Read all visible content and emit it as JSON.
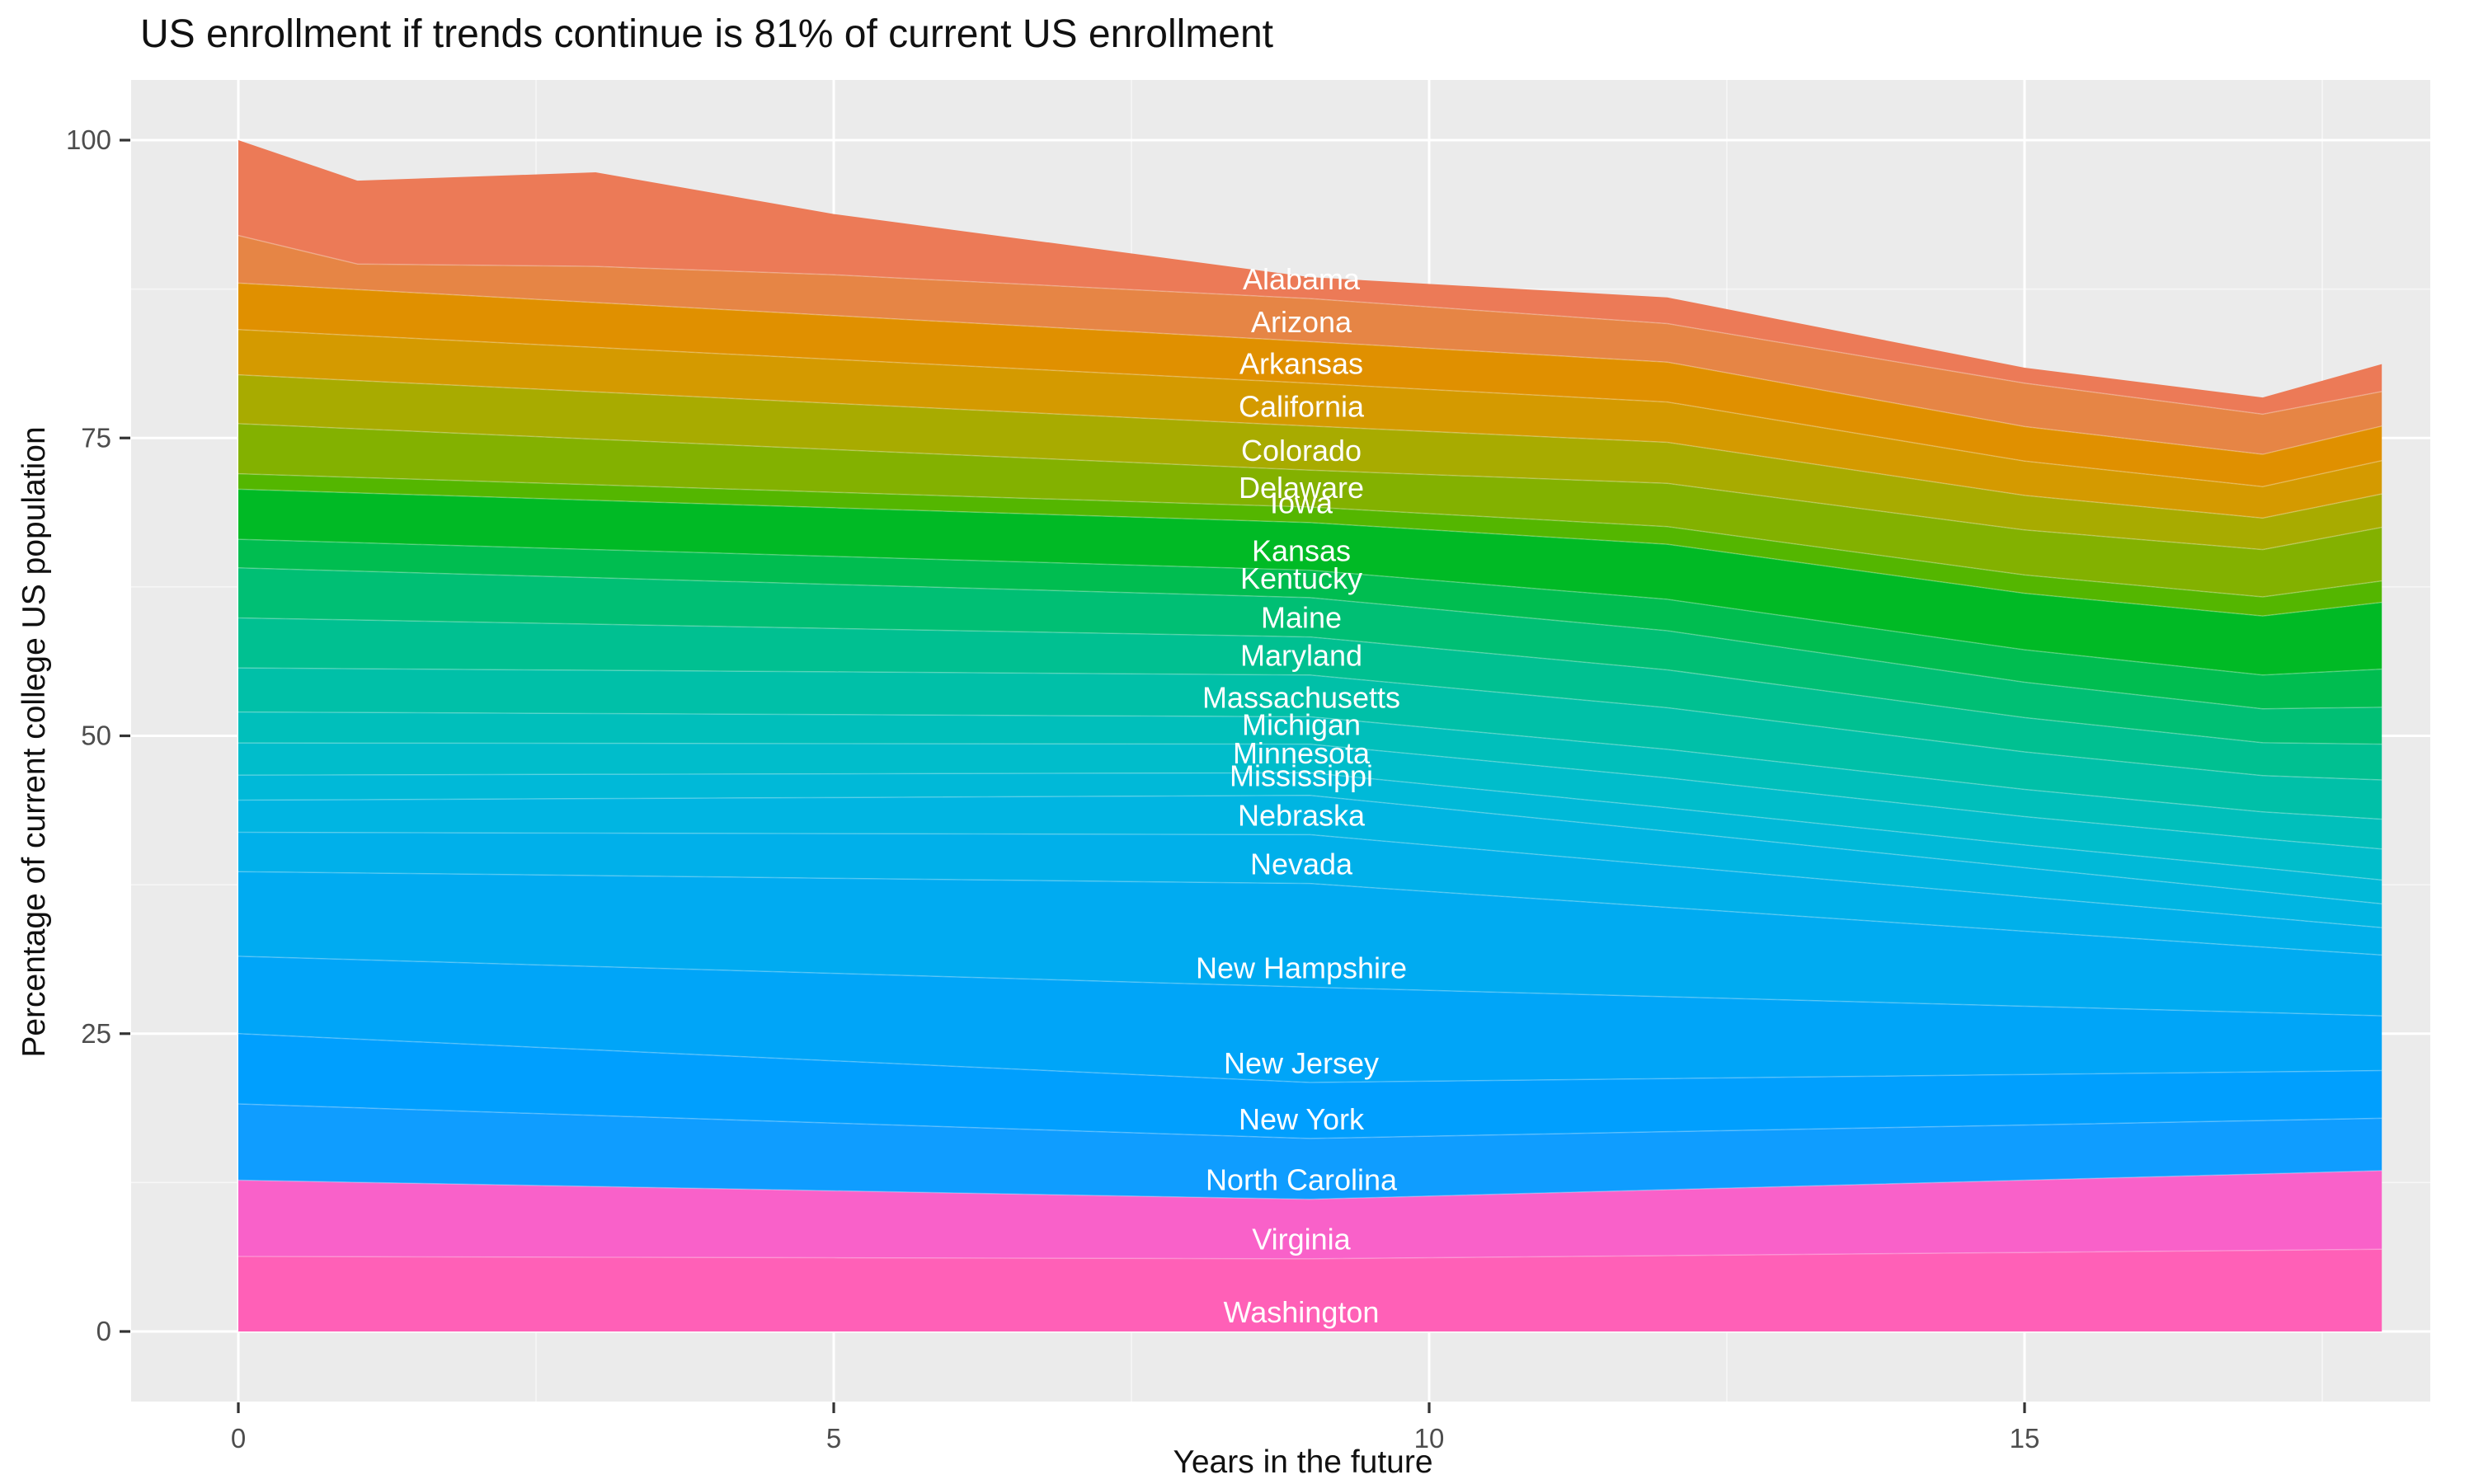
{
  "title": "US enrollment if trends continue is 81% of current US enrollment",
  "x_axis": {
    "title": "Years in the future",
    "tick_labels": [
      "0",
      "5",
      "10",
      "15"
    ],
    "tick_values": [
      0,
      5,
      10,
      15
    ]
  },
  "y_axis": {
    "title": "Percentage of current college US population",
    "tick_labels": [
      "0",
      "25",
      "50",
      "75",
      "100"
    ],
    "tick_values": [
      0,
      25,
      50,
      75,
      100
    ]
  },
  "colors": {
    "panel_background": "#EBEBEB",
    "grid_major": "#FFFFFF",
    "grid_minor": "#F5F5F5",
    "tick_mark": "#333333",
    "tick_label": "#4D4D4D",
    "title_text": "#111111",
    "state_label_text": "#FFFFFF"
  },
  "chart_data": {
    "type": "area",
    "stacked": true,
    "title": "US enrollment if trends continue is 81% of current US enrollment",
    "xlabel": "Years in the future",
    "ylabel": "Percentage of current college US population",
    "xlim": [
      0,
      18
    ],
    "ylim": [
      0,
      100
    ],
    "grid": "on",
    "legend": "none",
    "x": [
      0,
      1,
      3,
      5,
      9,
      12,
      15,
      17,
      18
    ],
    "x_minor_gridlines": [
      2.5,
      7.5,
      12.5,
      17.5
    ],
    "y_minor_gridlines": [
      12.5,
      37.5,
      62.5,
      87.5
    ],
    "total_start_pct": 100,
    "total_end_pct": 81,
    "series": [
      {
        "name": "Washington",
        "color": "#FF60B7",
        "values": [
          6.3,
          6.28,
          6.23,
          6.19,
          6.1,
          6.37,
          6.63,
          6.81,
          6.9
        ]
      },
      {
        "name": "Virginia",
        "color": "#F961C9",
        "values": [
          6.4,
          6.24,
          5.94,
          5.62,
          5.0,
          5.53,
          6.07,
          6.42,
          6.6
        ]
      },
      {
        "name": "North Carolina",
        "color": "#0F9DFF",
        "values": [
          6.4,
          6.26,
          5.96,
          5.68,
          5.1,
          4.87,
          4.63,
          4.48,
          4.4
        ]
      },
      {
        "name": "New York",
        "color": "#009FFE",
        "values": [
          5.9,
          5.76,
          5.5,
          5.23,
          4.7,
          4.46,
          4.24,
          4.08,
          4.0
        ]
      },
      {
        "name": "New Jersey",
        "color": "#00A5F8",
        "values": [
          6.5,
          6.67,
          7.0,
          7.34,
          8.0,
          6.87,
          5.73,
          4.98,
          4.6
        ]
      },
      {
        "name": "New Hampshire",
        "color": "#00ABF1",
        "values": [
          7.1,
          7.28,
          7.64,
          7.98,
          8.7,
          7.5,
          6.3,
          5.5,
          5.1
        ]
      },
      {
        "name": "Nevada",
        "color": "#00B0EA",
        "values": [
          3.3,
          3.39,
          3.56,
          3.75,
          4.1,
          3.5,
          2.9,
          2.5,
          2.3
        ]
      },
      {
        "name": "Nebraska",
        "color": "#00B5E2",
        "values": [
          2.7,
          2.76,
          2.9,
          3.03,
          3.3,
          2.9,
          2.43,
          2.14,
          2.0
        ]
      },
      {
        "name": "Mississippi",
        "color": "#00B9D8",
        "values": [
          2.1,
          2.08,
          2.04,
          1.99,
          1.9,
          1.96,
          1.91,
          1.99,
          2.0
        ]
      },
      {
        "name": "Minnesota",
        "color": "#00BDCB",
        "values": [
          2.7,
          2.67,
          2.6,
          2.53,
          2.4,
          2.51,
          2.38,
          2.45,
          2.6
        ]
      },
      {
        "name": "Michigan",
        "color": "#00BFBB",
        "values": [
          2.6,
          2.57,
          2.5,
          2.44,
          2.3,
          2.4,
          2.28,
          2.27,
          2.5
        ]
      },
      {
        "name": "Massachusetts",
        "color": "#00C0A8",
        "values": [
          3.7,
          3.67,
          3.63,
          3.59,
          3.5,
          3.49,
          3.15,
          3.04,
          3.3
        ]
      },
      {
        "name": "Maryland",
        "color": "#00C091",
        "values": [
          4.2,
          4.09,
          3.87,
          3.64,
          3.2,
          3.18,
          2.88,
          2.76,
          3.0
        ]
      },
      {
        "name": "Maine",
        "color": "#00BF74",
        "values": [
          4.2,
          4.1,
          3.9,
          3.7,
          3.3,
          3.28,
          2.97,
          2.85,
          3.1
        ]
      },
      {
        "name": "Kentucky",
        "color": "#00BD50",
        "values": [
          2.4,
          2.39,
          2.36,
          2.35,
          2.3,
          2.64,
          2.72,
          2.83,
          3.2
        ]
      },
      {
        "name": "Kansas",
        "color": "#00BA25",
        "values": [
          4.2,
          4.18,
          4.14,
          4.08,
          4.0,
          4.62,
          4.74,
          4.96,
          5.6
        ]
      },
      {
        "name": "Iowa",
        "color": "#54B600",
        "values": [
          1.3,
          1.3,
          1.3,
          1.3,
          1.3,
          1.48,
          1.54,
          1.6,
          1.8
        ]
      },
      {
        "name": "Delaware",
        "color": "#83B100",
        "values": [
          4.2,
          4.08,
          3.83,
          3.59,
          3.1,
          3.63,
          3.78,
          3.97,
          4.5
        ]
      },
      {
        "name": "Colorado",
        "color": "#A8AB00",
        "values": [
          4.1,
          4.05,
          3.97,
          3.88,
          3.7,
          3.45,
          2.9,
          2.65,
          2.8
        ]
      },
      {
        "name": "California",
        "color": "#D49A00",
        "values": [
          3.8,
          3.78,
          3.73,
          3.69,
          3.6,
          3.38,
          2.88,
          2.64,
          2.8
        ]
      },
      {
        "name": "Arkansas",
        "color": "#E09000",
        "values": [
          3.9,
          3.86,
          3.77,
          3.68,
          3.5,
          3.35,
          2.9,
          2.71,
          2.9
        ]
      },
      {
        "name": "Arizona",
        "color": "#E68545",
        "values": [
          4.0,
          2.14,
          3.03,
          3.42,
          3.6,
          3.23,
          3.64,
          3.37,
          2.9
        ]
      },
      {
        "name": "Alabama",
        "color": "#EC7A57",
        "values": [
          8.0,
          7.0,
          7.9,
          5.1,
          1.8,
          2.2,
          1.3,
          1.4,
          2.3
        ]
      }
    ],
    "state_labels": [
      {
        "text": "Alabama",
        "at_value": 88.3
      },
      {
        "text": "Arizona",
        "at_value": 84.7
      },
      {
        "text": "Arkansas",
        "at_value": 81.2
      },
      {
        "text": "California",
        "at_value": 77.6
      },
      {
        "text": "Colorado",
        "at_value": 73.9
      },
      {
        "text": "Delaware",
        "at_value": 70.8
      },
      {
        "text": "Iowa",
        "at_value": 69.5
      },
      {
        "text": "Kansas",
        "at_value": 65.5
      },
      {
        "text": "Kentucky",
        "at_value": 63.2
      },
      {
        "text": "Maine",
        "at_value": 59.9
      },
      {
        "text": "Maryland",
        "at_value": 56.7
      },
      {
        "text": "Massachusetts",
        "at_value": 53.2
      },
      {
        "text": "Michigan",
        "at_value": 50.9
      },
      {
        "text": "Minnesota",
        "at_value": 48.5
      },
      {
        "text": "Mississippi",
        "at_value": 46.6
      },
      {
        "text": "Nebraska",
        "at_value": 43.3
      },
      {
        "text": "Nevada",
        "at_value": 39.2
      },
      {
        "text": "New Hampshire",
        "at_value": 30.5
      },
      {
        "text": "New Jersey",
        "at_value": 22.5
      },
      {
        "text": "New York",
        "at_value": 17.8
      },
      {
        "text": "North Carolina",
        "at_value": 12.7
      },
      {
        "text": "Virginia",
        "at_value": 7.7
      },
      {
        "text": "Washington",
        "at_value": 1.6
      }
    ]
  }
}
